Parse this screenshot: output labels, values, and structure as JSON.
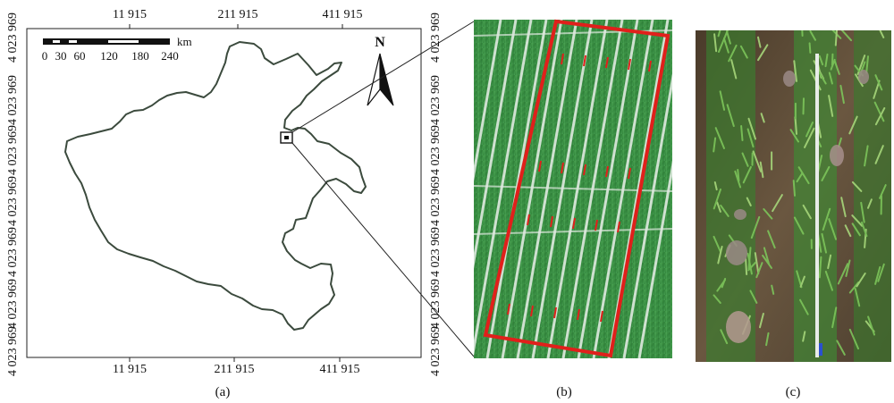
{
  "map": {
    "top_ticks": [
      "11 915",
      "211 915",
      "411 915"
    ],
    "bottom_ticks": [
      "11 915",
      "211 915",
      "411 915"
    ],
    "left_ticks": [
      "4 023 969",
      "4 023 969",
      "4 023 969",
      "4 023 969",
      "4 023 969",
      "4 023 969",
      "4 023 969"
    ],
    "right_ticks": [
      "4 023 969",
      "4 023 969",
      "4 023 969",
      "4 023 969",
      "4 023 969",
      "4 023 969",
      "4 023 969"
    ],
    "scale_bar": {
      "unit": "km",
      "labels": [
        "0",
        "30",
        "60",
        "120",
        "180",
        "240"
      ]
    },
    "north_label": "N"
  },
  "panels": {
    "a_caption": "(a)",
    "b_caption": "(b)",
    "c_caption": "(c)"
  },
  "colors": {
    "frame": "#222222",
    "boundary": "#3b4a3d",
    "plot_outline": "#e0201b",
    "field_green": "#2f8a3a",
    "soil_brown": "#5b4a33"
  }
}
